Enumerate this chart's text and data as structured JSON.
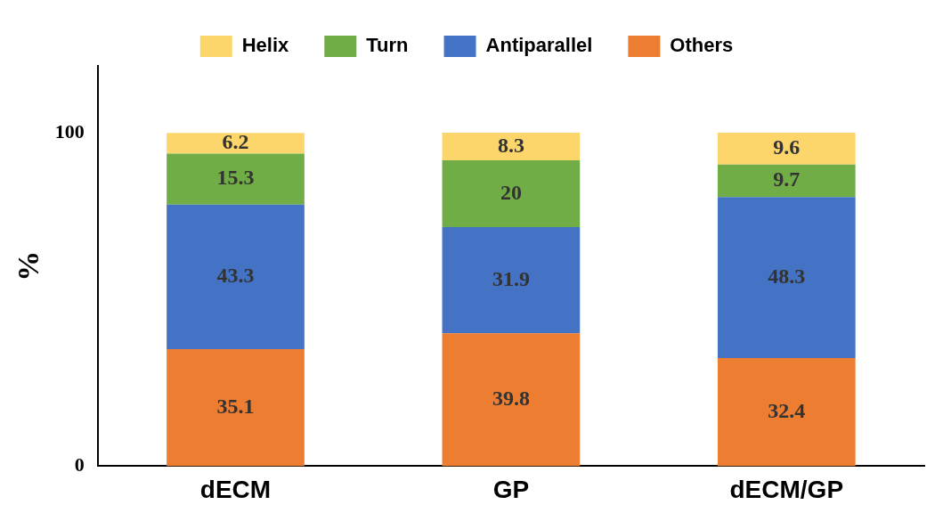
{
  "chart_data": {
    "type": "bar",
    "stacked": true,
    "categories": [
      "dECM",
      "GP",
      "dECM/GP"
    ],
    "ylabel": "%",
    "ylim": [
      0,
      120
    ],
    "yticks": [
      0,
      100
    ],
    "grid": false,
    "legend": "top",
    "data_labels": true,
    "series": [
      {
        "name": "Others",
        "color": "#ed7d31",
        "values": [
          35.1,
          39.8,
          32.4
        ]
      },
      {
        "name": "Antiparallel",
        "color": "#4472c4",
        "values": [
          43.3,
          31.9,
          48.3
        ]
      },
      {
        "name": "Turn",
        "color": "#70ad47",
        "values": [
          15.3,
          20,
          9.7
        ]
      },
      {
        "name": "Helix",
        "color": "#fcd66b",
        "values": [
          6.2,
          8.3,
          9.6
        ]
      }
    ]
  }
}
